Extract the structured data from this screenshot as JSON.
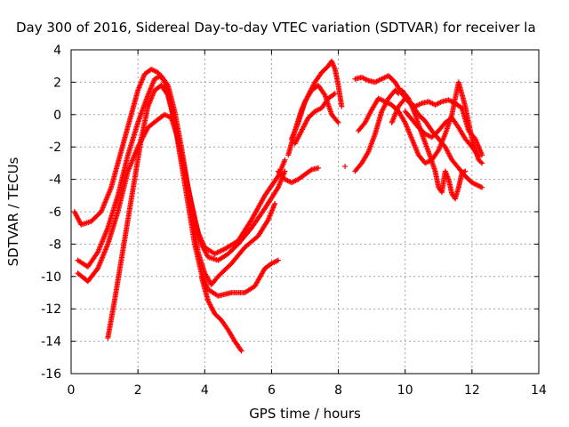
{
  "chart_data": {
    "type": "scatter",
    "title": "Day 300 of 2016, Sidereal Day-to-day VTEC variation (SDTVAR) for receiver la",
    "xlabel": "GPS time / hours",
    "ylabel": "SDTVAR / TECUs",
    "xlim": [
      0,
      14
    ],
    "ylim": [
      -16,
      4
    ],
    "xticks": [
      0,
      2,
      4,
      6,
      8,
      10,
      12,
      14
    ],
    "yticks": [
      -16,
      -14,
      -12,
      -10,
      -8,
      -6,
      -4,
      -2,
      0,
      2,
      4
    ],
    "grid": true,
    "marker": "+",
    "color": "#ff0000",
    "tracks": [
      {
        "points": [
          [
            0.1,
            -6.0
          ],
          [
            0.3,
            -6.8
          ],
          [
            0.6,
            -6.6
          ],
          [
            0.9,
            -6.0
          ],
          [
            1.2,
            -4.5
          ],
          [
            1.4,
            -3.0
          ],
          [
            1.6,
            -1.5
          ],
          [
            1.8,
            0.0
          ],
          [
            2.0,
            1.5
          ],
          [
            2.2,
            2.5
          ],
          [
            2.4,
            2.8
          ],
          [
            2.6,
            2.6
          ],
          [
            2.8,
            2.0
          ],
          [
            3.0,
            0.5
          ],
          [
            3.2,
            -1.5
          ],
          [
            3.4,
            -3.5
          ],
          [
            3.6,
            -5.5
          ],
          [
            3.8,
            -7.3
          ],
          [
            4.0,
            -8.2
          ],
          [
            4.3,
            -8.6
          ],
          [
            4.6,
            -8.3
          ],
          [
            5.0,
            -7.8
          ],
          [
            5.4,
            -6.5
          ],
          [
            5.8,
            -5.0
          ],
          [
            6.2,
            -3.8
          ],
          [
            6.4,
            -2.8
          ]
        ]
      },
      {
        "points": [
          [
            0.2,
            -9.0
          ],
          [
            0.5,
            -9.4
          ],
          [
            0.8,
            -8.5
          ],
          [
            1.1,
            -7.0
          ],
          [
            1.4,
            -5.0
          ],
          [
            1.7,
            -2.5
          ],
          [
            2.0,
            -0.5
          ],
          [
            2.3,
            1.2
          ],
          [
            2.5,
            2.2
          ],
          [
            2.7,
            2.4
          ],
          [
            2.9,
            1.8
          ],
          [
            3.1,
            0.2
          ],
          [
            3.3,
            -2.0
          ],
          [
            3.5,
            -4.5
          ],
          [
            3.7,
            -6.5
          ],
          [
            3.9,
            -8.0
          ],
          [
            4.1,
            -8.8
          ],
          [
            4.4,
            -9.0
          ],
          [
            4.7,
            -8.6
          ],
          [
            5.0,
            -8.0
          ],
          [
            5.4,
            -7.0
          ],
          [
            5.8,
            -5.8
          ],
          [
            6.2,
            -4.5
          ],
          [
            6.4,
            -3.5
          ]
        ]
      },
      {
        "points": [
          [
            0.2,
            -9.8
          ],
          [
            0.5,
            -10.3
          ],
          [
            0.8,
            -9.5
          ],
          [
            1.1,
            -8.0
          ],
          [
            1.4,
            -6.0
          ],
          [
            1.7,
            -3.5
          ],
          [
            2.0,
            -2.0
          ],
          [
            2.3,
            -0.8
          ],
          [
            2.6,
            -0.3
          ],
          [
            2.8,
            0.0
          ],
          [
            3.0,
            -0.2
          ],
          [
            3.2,
            -1.5
          ],
          [
            3.4,
            -3.5
          ],
          [
            3.6,
            -6.0
          ],
          [
            3.8,
            -8.5
          ],
          [
            4.0,
            -9.8
          ],
          [
            4.2,
            -10.5
          ],
          [
            4.4,
            -10.0
          ],
          [
            4.8,
            -9.2
          ],
          [
            5.2,
            -8.2
          ],
          [
            5.6,
            -7.5
          ],
          [
            5.9,
            -6.5
          ],
          [
            6.1,
            -5.5
          ]
        ]
      },
      {
        "points": [
          [
            1.1,
            -13.8
          ],
          [
            1.3,
            -11.5
          ],
          [
            1.5,
            -9.0
          ],
          [
            1.7,
            -6.5
          ],
          [
            1.9,
            -4.0
          ],
          [
            2.1,
            -1.5
          ],
          [
            2.3,
            0.5
          ],
          [
            2.5,
            1.5
          ],
          [
            2.7,
            1.8
          ],
          [
            2.9,
            1.2
          ],
          [
            3.1,
            -0.5
          ],
          [
            3.3,
            -3.0
          ],
          [
            3.5,
            -5.5
          ],
          [
            3.7,
            -8.0
          ],
          [
            3.9,
            -9.8
          ],
          [
            4.1,
            -10.8
          ],
          [
            4.4,
            -11.2
          ],
          [
            4.8,
            -11.0
          ],
          [
            5.2,
            -11.0
          ],
          [
            5.5,
            -10.6
          ],
          [
            5.8,
            -9.5
          ],
          [
            6.0,
            -9.2
          ],
          [
            6.2,
            -9.0
          ]
        ]
      },
      {
        "points": [
          [
            3.9,
            -10.0
          ],
          [
            4.1,
            -11.5
          ],
          [
            4.3,
            -12.3
          ],
          [
            4.5,
            -12.7
          ],
          [
            4.7,
            -13.3
          ],
          [
            4.9,
            -14.0
          ],
          [
            5.1,
            -14.6
          ]
        ]
      },
      {
        "points": [
          [
            6.2,
            -3.5
          ],
          [
            6.4,
            -4.0
          ],
          [
            6.6,
            -4.2
          ],
          [
            6.8,
            -4.0
          ],
          [
            7.0,
            -3.7
          ],
          [
            7.2,
            -3.4
          ],
          [
            7.4,
            -3.3
          ]
        ]
      },
      {
        "points": [
          [
            6.5,
            -2.5
          ],
          [
            6.7,
            -1.0
          ],
          [
            6.9,
            0.3
          ],
          [
            7.1,
            1.2
          ],
          [
            7.3,
            2.0
          ],
          [
            7.5,
            2.6
          ],
          [
            7.7,
            3.0
          ],
          [
            7.8,
            3.3
          ],
          [
            7.9,
            2.8
          ],
          [
            8.0,
            1.8
          ],
          [
            8.1,
            0.5
          ]
        ]
      },
      {
        "points": [
          [
            6.6,
            -1.5
          ],
          [
            6.8,
            -0.5
          ],
          [
            7.0,
            0.8
          ],
          [
            7.2,
            1.5
          ],
          [
            7.4,
            1.8
          ],
          [
            7.6,
            1.2
          ],
          [
            7.8,
            0.0
          ],
          [
            8.0,
            -0.5
          ]
        ]
      },
      {
        "points": [
          [
            6.7,
            -1.8
          ],
          [
            6.9,
            -1.0
          ],
          [
            7.1,
            -0.2
          ],
          [
            7.3,
            0.2
          ],
          [
            7.5,
            0.4
          ],
          [
            7.7,
            1.0
          ],
          [
            7.9,
            1.3
          ]
        ]
      },
      {
        "points": [
          [
            8.2,
            -3.2
          ]
        ]
      },
      {
        "points": [
          [
            8.5,
            -3.5
          ],
          [
            8.7,
            -3.0
          ],
          [
            8.9,
            -2.3
          ],
          [
            9.1,
            -1.2
          ],
          [
            9.3,
            0.2
          ],
          [
            9.5,
            1.0
          ],
          [
            9.7,
            1.5
          ],
          [
            9.8,
            1.3
          ]
        ]
      },
      {
        "points": [
          [
            8.5,
            2.2
          ],
          [
            8.7,
            2.3
          ],
          [
            8.9,
            2.1
          ],
          [
            9.1,
            2.0
          ],
          [
            9.3,
            2.2
          ],
          [
            9.5,
            2.4
          ],
          [
            9.7,
            2.0
          ],
          [
            9.9,
            1.3
          ],
          [
            10.1,
            0.8
          ],
          [
            10.3,
            0.5
          ],
          [
            10.5,
            0.7
          ],
          [
            10.7,
            0.8
          ],
          [
            10.9,
            0.6
          ],
          [
            11.1,
            0.8
          ],
          [
            11.3,
            0.9
          ],
          [
            11.5,
            0.7
          ],
          [
            11.7,
            0.4
          ],
          [
            11.9,
            -1.0
          ],
          [
            12.1,
            -1.5
          ],
          [
            12.3,
            -2.5
          ]
        ]
      },
      {
        "points": [
          [
            8.6,
            -1.0
          ],
          [
            8.8,
            -0.5
          ],
          [
            9.0,
            0.3
          ],
          [
            9.2,
            1.0
          ],
          [
            9.4,
            0.8
          ],
          [
            9.6,
            0.6
          ],
          [
            9.8,
            0.2
          ],
          [
            10.0,
            -0.5
          ],
          [
            10.2,
            -1.5
          ],
          [
            10.4,
            -2.5
          ],
          [
            10.6,
            -3.0
          ],
          [
            10.8,
            -2.8
          ],
          [
            11.0,
            -2.2
          ],
          [
            11.2,
            -1.2
          ],
          [
            11.4,
            0.0
          ],
          [
            11.6,
            2.0
          ],
          [
            11.8,
            0.5
          ],
          [
            12.0,
            -1.5
          ],
          [
            12.2,
            -2.8
          ],
          [
            12.3,
            -3.0
          ]
        ]
      },
      {
        "points": [
          [
            9.6,
            -0.5
          ],
          [
            9.8,
            0.5
          ],
          [
            10.0,
            1.0
          ],
          [
            10.2,
            0.6
          ],
          [
            10.4,
            0.0
          ],
          [
            10.6,
            -0.4
          ],
          [
            10.8,
            -1.0
          ],
          [
            11.0,
            -1.5
          ],
          [
            11.2,
            -2.0
          ],
          [
            11.4,
            -2.8
          ],
          [
            11.6,
            -3.3
          ],
          [
            11.8,
            -3.8
          ],
          [
            12.0,
            -4.2
          ],
          [
            12.3,
            -4.5
          ]
        ]
      },
      {
        "points": [
          [
            9.9,
            1.5
          ],
          [
            10.1,
            1.0
          ],
          [
            10.3,
            0.0
          ],
          [
            10.5,
            -1.2
          ],
          [
            10.7,
            -2.3
          ],
          [
            10.9,
            -3.5
          ],
          [
            11.0,
            -4.5
          ],
          [
            11.1,
            -4.8
          ],
          [
            11.2,
            -3.5
          ],
          [
            11.3,
            -4.0
          ],
          [
            11.4,
            -4.9
          ],
          [
            11.5,
            -5.2
          ],
          [
            11.6,
            -4.5
          ],
          [
            11.7,
            -3.6
          ],
          [
            11.8,
            -3.5
          ]
        ]
      },
      {
        "points": [
          [
            10.0,
            0.2
          ],
          [
            10.2,
            -0.3
          ],
          [
            10.4,
            -0.8
          ],
          [
            10.6,
            -1.2
          ],
          [
            10.8,
            -1.4
          ],
          [
            11.0,
            -1.0
          ],
          [
            11.2,
            -0.5
          ],
          [
            11.4,
            -0.2
          ],
          [
            11.6,
            -0.8
          ],
          [
            11.8,
            -1.5
          ],
          [
            12.0,
            -2.0
          ],
          [
            12.2,
            -2.6
          ]
        ]
      }
    ]
  }
}
